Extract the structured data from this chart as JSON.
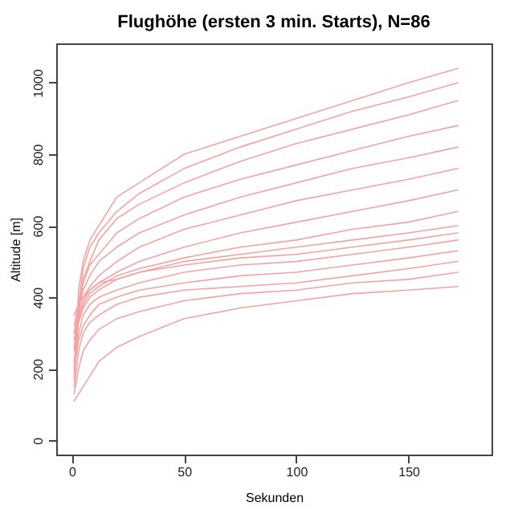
{
  "chart_data": {
    "type": "line",
    "title": "Flughöhe (ersten 3 min. Starts), N=86",
    "xlabel": "Sekunden",
    "ylabel": "Altitude [m]",
    "x": [
      1,
      3,
      5,
      8,
      12,
      20,
      30,
      50,
      75,
      100,
      125,
      150,
      172
    ],
    "series": [
      {
        "color": "#f4a3a3",
        "values": [
          200,
          420,
          500,
          560,
          600,
          680,
          720,
          800,
          850,
          900,
          950,
          1000,
          1040
        ]
      },
      {
        "color": "#f4a3a3",
        "values": [
          180,
          380,
          480,
          540,
          580,
          640,
          690,
          760,
          820,
          870,
          920,
          960,
          1000
        ]
      },
      {
        "color": "#f4a3a3",
        "values": [
          170,
          350,
          450,
          500,
          560,
          620,
          660,
          720,
          780,
          830,
          870,
          910,
          950
        ]
      },
      {
        "color": "#f4a3a3",
        "values": [
          250,
          380,
          440,
          490,
          520,
          580,
          620,
          680,
          730,
          770,
          810,
          850,
          880
        ]
      },
      {
        "color": "#f4a3a3",
        "values": [
          300,
          360,
          420,
          460,
          500,
          540,
          580,
          630,
          680,
          720,
          760,
          790,
          820
        ]
      },
      {
        "color": "#f4a3a3",
        "values": [
          320,
          380,
          400,
          430,
          460,
          500,
          540,
          590,
          630,
          670,
          700,
          730,
          760
        ]
      },
      {
        "color": "#f4a3a3",
        "values": [
          280,
          350,
          390,
          420,
          440,
          470,
          500,
          540,
          580,
          610,
          640,
          670,
          700
        ]
      },
      {
        "color": "#f4a3a3",
        "values": [
          300,
          340,
          380,
          410,
          430,
          460,
          480,
          510,
          540,
          560,
          590,
          610,
          640
        ]
      },
      {
        "color": "#f4a3a3",
        "values": [
          260,
          330,
          370,
          400,
          420,
          450,
          470,
          500,
          520,
          540,
          560,
          580,
          600
        ]
      },
      {
        "color": "#f4a3a3",
        "values": [
          350,
          380,
          400,
          420,
          440,
          450,
          470,
          490,
          510,
          520,
          540,
          560,
          580
        ]
      },
      {
        "color": "#f4a3a3",
        "values": [
          220,
          300,
          350,
          380,
          400,
          420,
          440,
          470,
          490,
          500,
          520,
          540,
          560
        ]
      },
      {
        "color": "#f4a3a3",
        "values": [
          200,
          280,
          320,
          350,
          380,
          400,
          420,
          440,
          460,
          470,
          490,
          510,
          530
        ]
      },
      {
        "color": "#f4a3a3",
        "values": [
          150,
          250,
          300,
          330,
          350,
          380,
          400,
          420,
          430,
          440,
          460,
          480,
          500
        ]
      },
      {
        "color": "#f4a3a3",
        "values": [
          130,
          200,
          250,
          280,
          310,
          340,
          360,
          390,
          410,
          420,
          440,
          450,
          470
        ]
      },
      {
        "color": "#f4a3a3",
        "values": [
          110,
          130,
          150,
          180,
          220,
          260,
          290,
          340,
          370,
          390,
          410,
          420,
          430
        ]
      }
    ],
    "xlim": [
      -7,
      187
    ],
    "xticks": [
      0,
      50,
      100,
      150
    ],
    "ylim": [
      -40,
      1110
    ],
    "yticks": [
      0,
      200,
      400,
      600,
      800,
      1000
    ],
    "grid": false,
    "legend": false
  }
}
